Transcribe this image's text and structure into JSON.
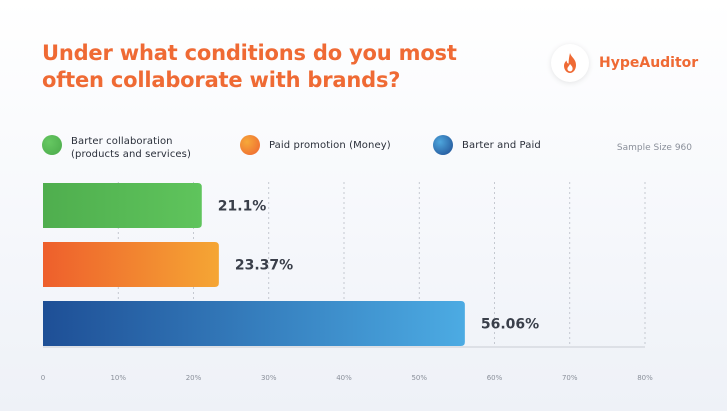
{
  "brand": {
    "name": "HypeAuditor",
    "logo_icon": "flame-icon",
    "color": "#ef6a34"
  },
  "legend": {
    "sample_size": "Sample Size 960"
  },
  "chart_data": {
    "type": "bar",
    "orientation": "horizontal",
    "title": "Under what conditions do you most often collaborate with brands?",
    "categories": [
      "Barter collaboration (products and services)",
      "Paid promotion (Money)",
      "Barter and Paid"
    ],
    "values": [
      21.1,
      23.37,
      56.06
    ],
    "value_labels": [
      "21.1%",
      "23.37%",
      "56.06%"
    ],
    "colors": [
      [
        "#4fae4e",
        "#5fc45c"
      ],
      [
        "#ee5f2c",
        "#f5a634"
      ],
      [
        "#1e4f96",
        "#4cabe3"
      ]
    ],
    "xlim": [
      0,
      80
    ],
    "x_ticks": [
      "0",
      "10%",
      "20%",
      "30%",
      "40%",
      "50%",
      "60%",
      "70%",
      "80%"
    ],
    "x_tick_values": [
      0,
      10,
      20,
      30,
      40,
      50,
      60,
      70,
      80
    ],
    "grid": true,
    "legend_position": "top"
  }
}
